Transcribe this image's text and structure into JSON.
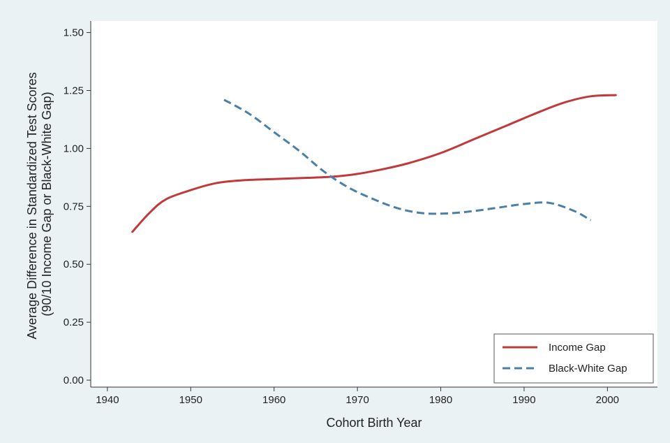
{
  "chart_data": {
    "type": "line",
    "xlabel": "Cohort Birth Year",
    "ylabel_lines": [
      "Average Difference in Standardized Test Scores",
      "(90/10 Income Gap or Black-White Gap)"
    ],
    "xlim": [
      1938,
      2006
    ],
    "ylim": [
      -0.03,
      1.55
    ],
    "xticks": [
      1940,
      1950,
      1960,
      1970,
      1980,
      1990,
      2000
    ],
    "yticks": [
      0.0,
      0.25,
      0.5,
      0.75,
      1.0,
      1.25,
      1.5
    ],
    "ytick_labels": [
      "0.00",
      "0.25",
      "0.50",
      "0.75",
      "1.00",
      "1.25",
      "1.50"
    ],
    "grid": false,
    "legend_position": "bottom-right",
    "series": [
      {
        "name": "Income Gap",
        "color": "#c0393b",
        "style": "solid",
        "x": [
          1943,
          1945,
          1947,
          1950,
          1953,
          1956,
          1960,
          1964,
          1967,
          1970,
          1973,
          1976,
          1980,
          1984,
          1988,
          1992,
          1995,
          1998,
          2001
        ],
        "y": [
          0.64,
          0.72,
          0.78,
          0.82,
          0.85,
          0.862,
          0.868,
          0.873,
          0.878,
          0.89,
          0.91,
          0.935,
          0.98,
          1.04,
          1.1,
          1.16,
          1.2,
          1.225,
          1.23
        ]
      },
      {
        "name": "Black-White Gap",
        "color": "#4a7fa8",
        "style": "dashed",
        "x": [
          1954,
          1957,
          1960,
          1963,
          1966,
          1969,
          1972,
          1975,
          1978,
          1981,
          1984,
          1987,
          1990,
          1993,
          1996,
          1998
        ],
        "y": [
          1.21,
          1.15,
          1.07,
          0.99,
          0.9,
          0.83,
          0.78,
          0.74,
          0.72,
          0.72,
          0.73,
          0.745,
          0.76,
          0.765,
          0.73,
          0.69
        ]
      }
    ]
  }
}
